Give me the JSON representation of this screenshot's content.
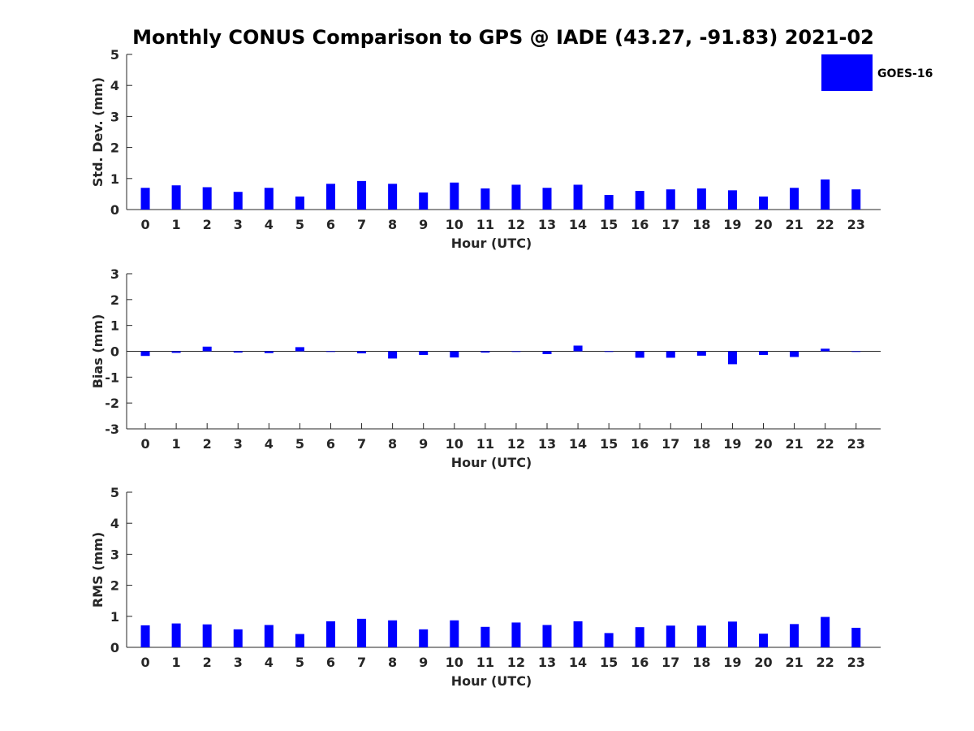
{
  "title": "Monthly CONUS Comparison to GPS @ IADE (43.27, -91.83) 2021-02",
  "legend": {
    "label": "GOES-16",
    "color": "#0000ff"
  },
  "chart_data": [
    {
      "type": "bar",
      "title": "",
      "xlabel": "Hour (UTC)",
      "ylabel": "Std. Dev. (mm)",
      "categories": [
        "0",
        "1",
        "2",
        "3",
        "4",
        "5",
        "6",
        "7",
        "8",
        "9",
        "10",
        "11",
        "12",
        "13",
        "14",
        "15",
        "16",
        "17",
        "18",
        "19",
        "20",
        "21",
        "22",
        "23"
      ],
      "series": [
        {
          "name": "GOES-16",
          "color": "#0000ff",
          "values": [
            0.7,
            0.78,
            0.72,
            0.57,
            0.7,
            0.42,
            0.83,
            0.92,
            0.83,
            0.55,
            0.87,
            0.68,
            0.8,
            0.7,
            0.8,
            0.47,
            0.6,
            0.65,
            0.68,
            0.62,
            0.42,
            0.7,
            0.97,
            0.65
          ]
        }
      ],
      "ylim": [
        0,
        5
      ],
      "yticks": [
        0,
        1,
        2,
        3,
        4,
        5
      ],
      "grid": false,
      "legend": "top-right"
    },
    {
      "type": "bar",
      "title": "",
      "xlabel": "Hour (UTC)",
      "ylabel": "Bias (mm)",
      "categories": [
        "0",
        "1",
        "2",
        "3",
        "4",
        "5",
        "6",
        "7",
        "8",
        "9",
        "10",
        "11",
        "12",
        "13",
        "14",
        "15",
        "16",
        "17",
        "18",
        "19",
        "20",
        "21",
        "22",
        "23"
      ],
      "series": [
        {
          "name": "GOES-16",
          "color": "#0000ff",
          "values": [
            -0.18,
            -0.06,
            0.18,
            -0.05,
            -0.07,
            0.16,
            -0.02,
            -0.08,
            -0.28,
            -0.14,
            -0.24,
            -0.05,
            -0.02,
            -0.11,
            0.22,
            -0.01,
            -0.25,
            -0.25,
            -0.17,
            -0.5,
            -0.14,
            -0.22,
            0.1,
            -0.02
          ]
        }
      ],
      "ylim": [
        -3,
        3
      ],
      "yticks": [
        -3,
        -2,
        -1,
        0,
        1,
        2,
        3
      ],
      "grid": false
    },
    {
      "type": "bar",
      "title": "",
      "xlabel": "Hour (UTC)",
      "ylabel": "RMS (mm)",
      "categories": [
        "0",
        "1",
        "2",
        "3",
        "4",
        "5",
        "6",
        "7",
        "8",
        "9",
        "10",
        "11",
        "12",
        "13",
        "14",
        "15",
        "16",
        "17",
        "18",
        "19",
        "20",
        "21",
        "22",
        "23"
      ],
      "series": [
        {
          "name": "GOES-16",
          "color": "#0000ff",
          "values": [
            0.71,
            0.77,
            0.74,
            0.58,
            0.72,
            0.43,
            0.84,
            0.92,
            0.87,
            0.58,
            0.87,
            0.66,
            0.8,
            0.72,
            0.84,
            0.46,
            0.65,
            0.7,
            0.7,
            0.83,
            0.44,
            0.75,
            0.98,
            0.63
          ]
        }
      ],
      "ylim": [
        0,
        5
      ],
      "yticks": [
        0,
        1,
        2,
        3,
        4,
        5
      ],
      "grid": false
    }
  ]
}
